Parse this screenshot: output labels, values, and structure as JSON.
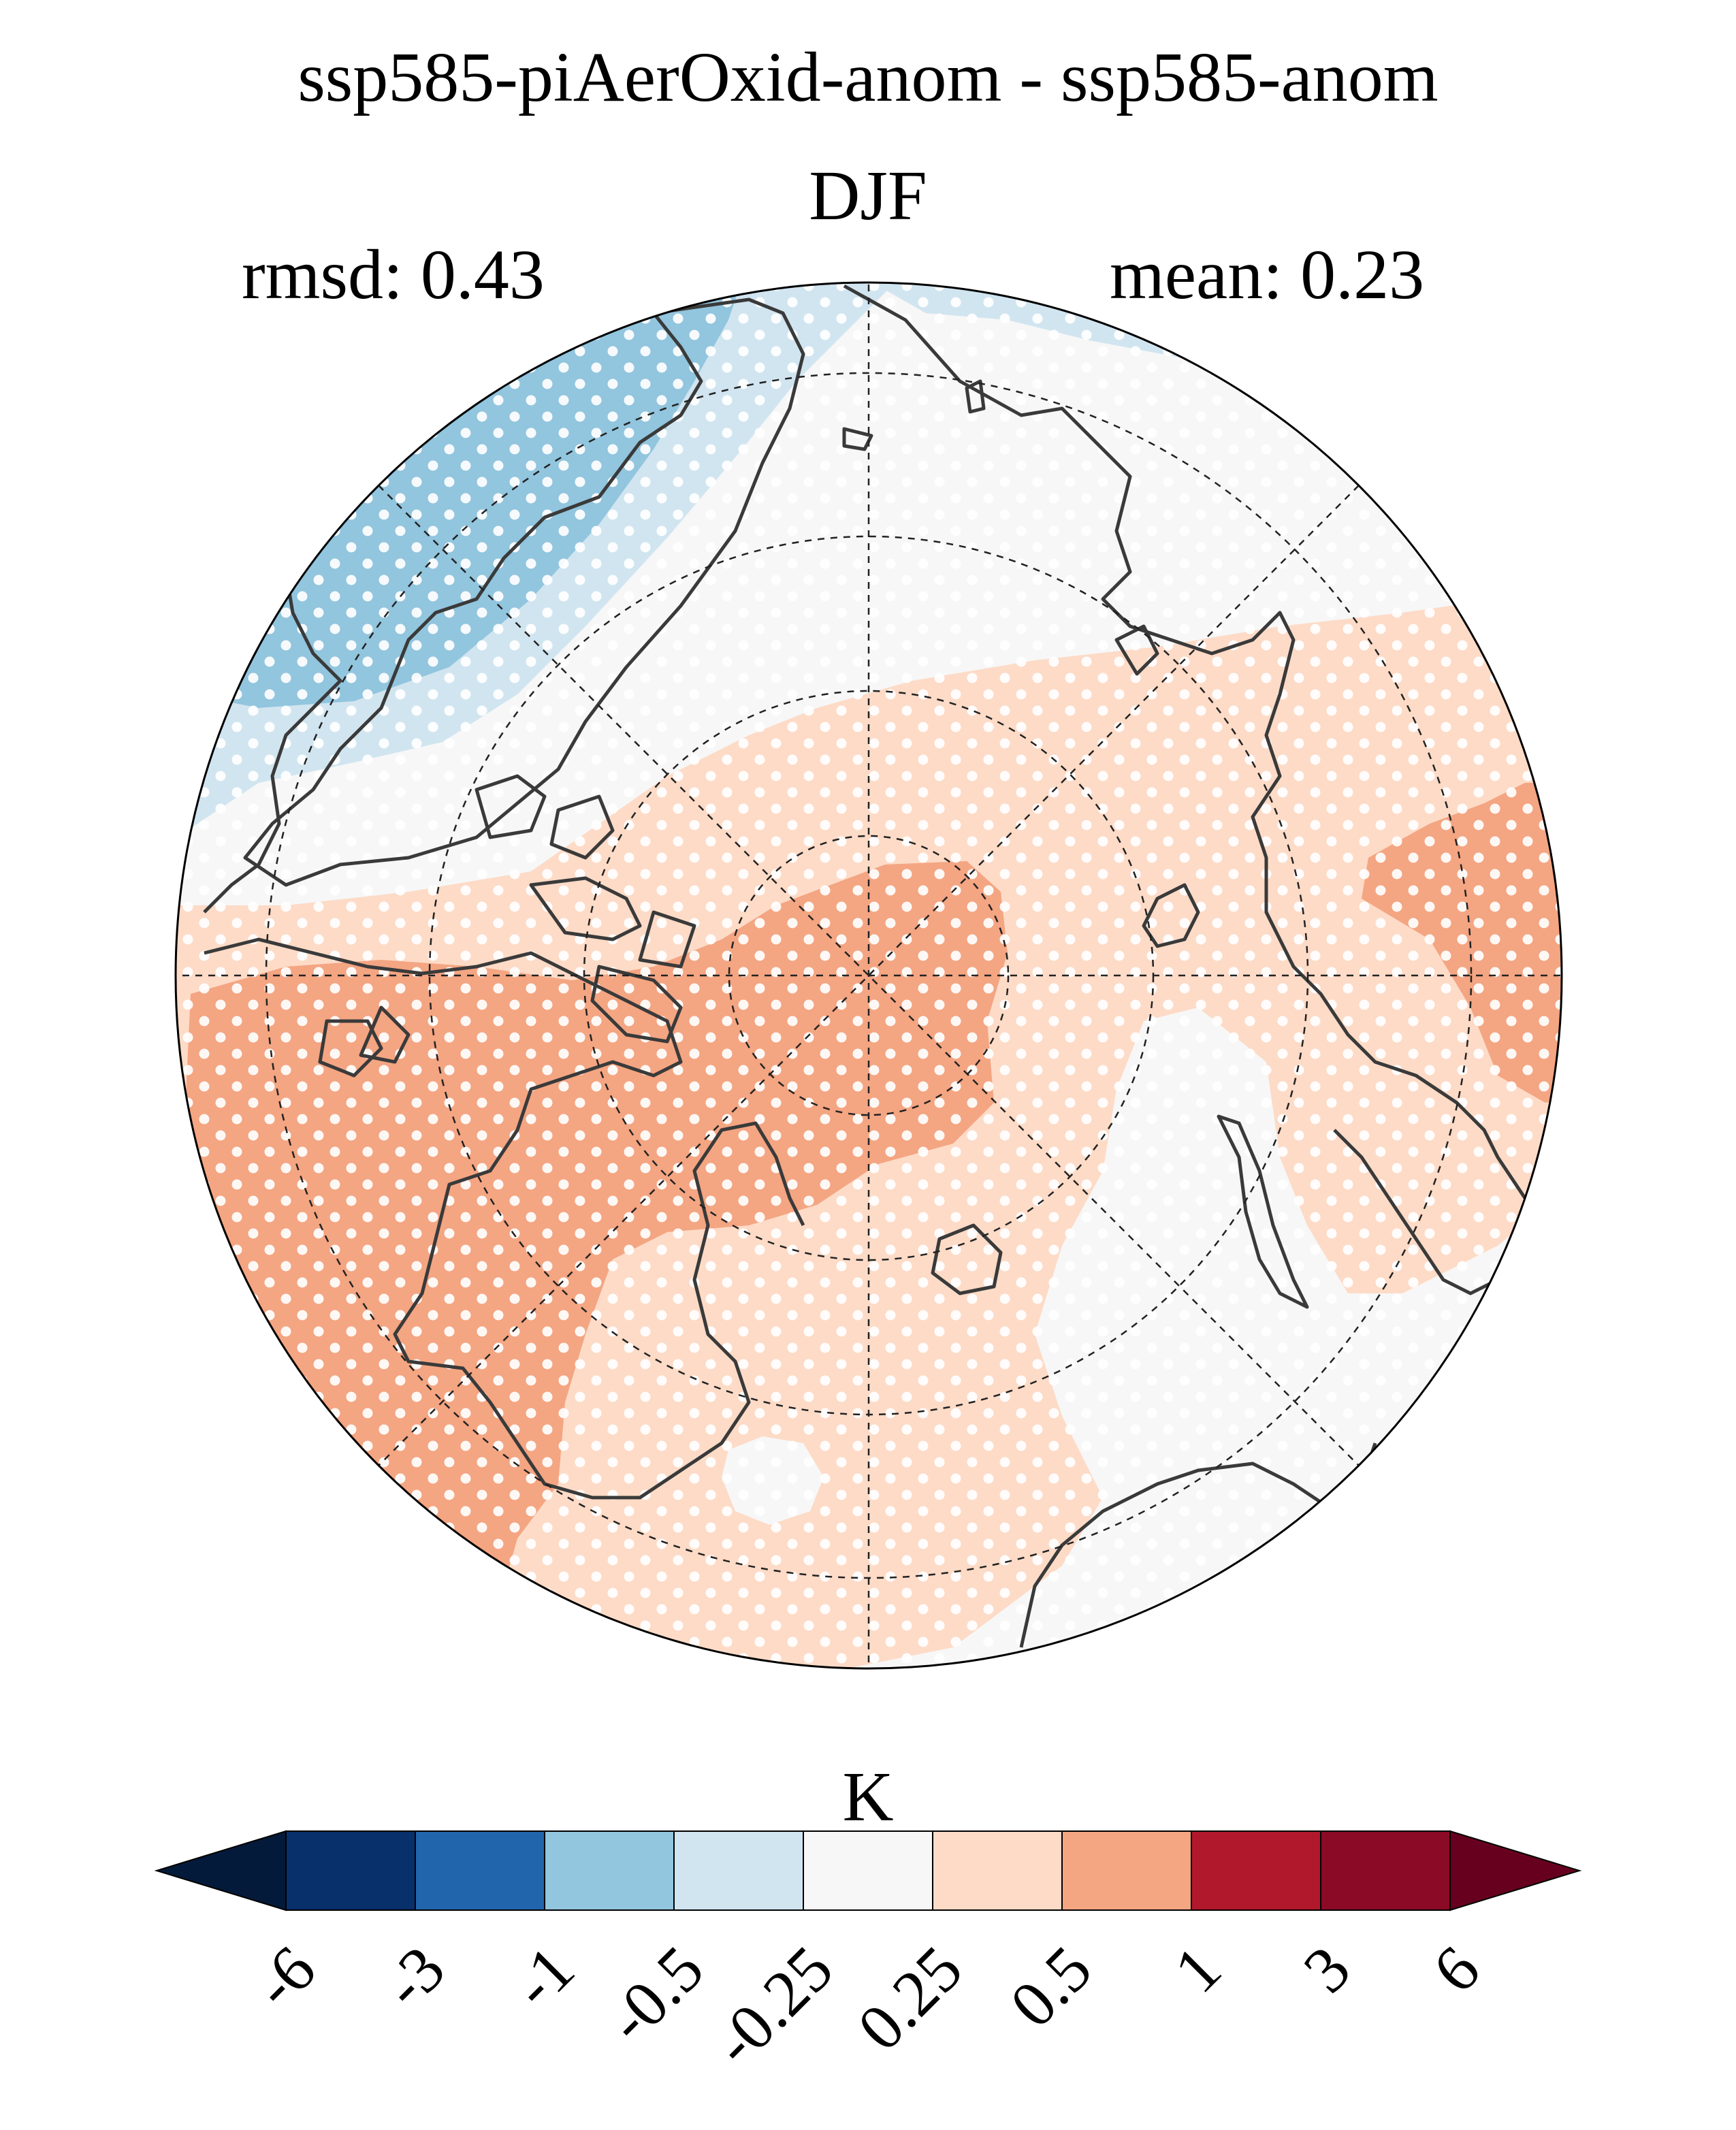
{
  "title": "ssp585-piAerOxid-anom - ssp585-anom",
  "season": "DJF",
  "stats": {
    "rmsd": "rmsd: 0.43",
    "mean": "mean: 0.23"
  },
  "colorbar": {
    "unit": "K",
    "ticks": [
      "-6",
      "-3",
      "-1",
      "-0.5",
      "-0.25",
      "0.25",
      "0.5",
      "1",
      "3",
      "6"
    ],
    "colors": [
      "#08306b",
      "#2166ac",
      "#92c5de",
      "#d1e5f0",
      "#f7f7f7",
      "#fddbc7",
      "#f4a582",
      "#b2182b",
      "#8b0a26"
    ],
    "under_color": "#041a3a",
    "over_color": "#67001f"
  },
  "map": {
    "projection": "north-polar-stereographic",
    "colors": {
      "neutral": "#f7f7f7",
      "light_blue": "#d1e5f0",
      "mid_blue": "#92c5de",
      "light_red": "#fddbc7",
      "mid_red": "#f4a582",
      "coast": "#3a3a3a"
    }
  }
}
